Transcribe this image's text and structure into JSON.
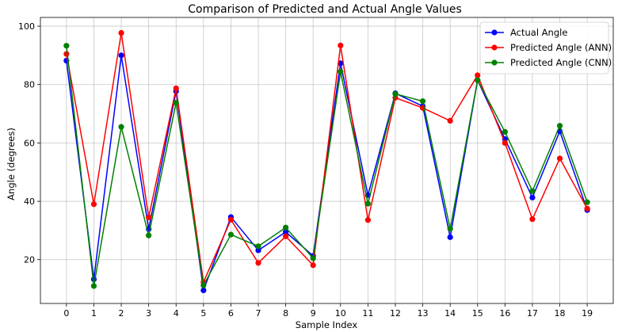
{
  "chart_data": {
    "type": "line",
    "title": "Comparison of Predicted and Actual Angle Values",
    "xlabel": "Sample Index",
    "ylabel": "Angle (degrees)",
    "x": [
      0,
      1,
      2,
      3,
      4,
      5,
      6,
      7,
      8,
      9,
      10,
      11,
      12,
      13,
      14,
      15,
      16,
      17,
      18,
      19
    ],
    "xlim": [
      -0.95,
      19.95
    ],
    "ylim": [
      5,
      103
    ],
    "yticks": [
      20,
      40,
      60,
      80,
      100
    ],
    "grid": true,
    "legend_position": "top-right",
    "series": [
      {
        "name": "Actual Angle",
        "color": "#0000ff",
        "values": [
          88.2,
          13.3,
          90.0,
          30.5,
          77.7,
          9.5,
          34.6,
          23.2,
          29.5,
          21.3,
          87.3,
          42.1,
          77.0,
          72.6,
          27.7,
          81.5,
          61.3,
          41.3,
          64.0,
          37.0
        ]
      },
      {
        "name": "Predicted Angle (ANN)",
        "color": "#ff0000",
        "values": [
          90.5,
          39.0,
          97.7,
          34.5,
          78.7,
          12.3,
          33.7,
          18.9,
          28.0,
          18.1,
          93.4,
          33.6,
          75.5,
          72.0,
          67.6,
          83.2,
          60.0,
          33.9,
          54.7,
          37.5
        ]
      },
      {
        "name": "Predicted Angle (CNN)",
        "color": "#008000",
        "values": [
          93.3,
          11.0,
          65.5,
          28.3,
          73.8,
          11.2,
          28.6,
          24.6,
          31.0,
          20.5,
          84.4,
          39.2,
          76.8,
          74.3,
          30.6,
          81.5,
          63.8,
          43.5,
          65.9,
          39.7
        ]
      }
    ]
  }
}
